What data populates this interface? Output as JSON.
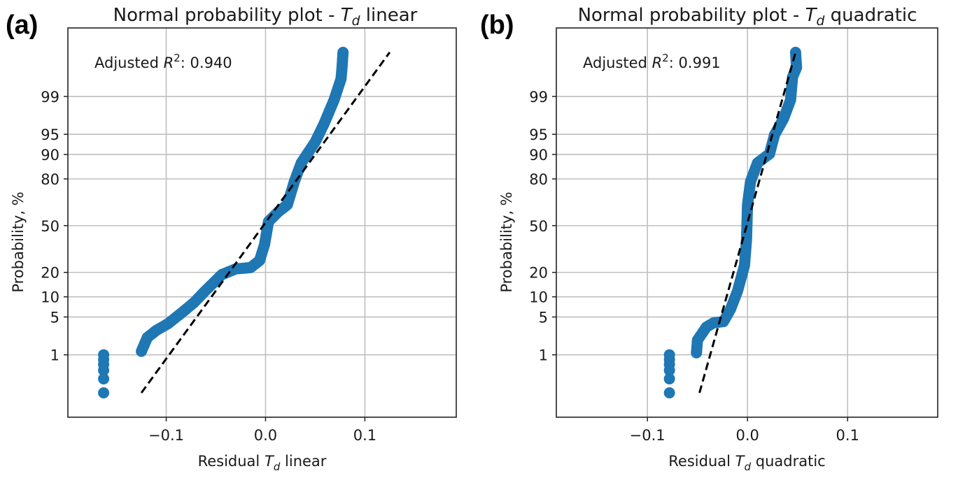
{
  "chart_data": [
    {
      "type": "scatter",
      "panel_label": "(a)",
      "title": {
        "prefix": "Normal probability plot - ",
        "var": "T",
        "sub": "d",
        "suffix": " linear"
      },
      "xlabel": {
        "prefix": "Residual ",
        "var": "T",
        "sub": "d",
        "suffix": " linear"
      },
      "ylabel": "Probability, %",
      "annotation": {
        "prefix": "Adjusted ",
        "var": "R",
        "sup": "2",
        "suffix": ": 0.940"
      },
      "xlim": [
        -0.199,
        0.192
      ],
      "ylim_probability": [
        0.019,
        99.98
      ],
      "y_scale": "normal-probability",
      "xticks": [
        -0.1,
        0.0,
        0.1
      ],
      "xtick_labels": [
        "−0.1",
        "0.0",
        "0.1"
      ],
      "yticks": [
        1,
        5,
        10,
        20,
        50,
        80,
        90,
        95,
        99
      ],
      "ytick_labels": [
        "1",
        "5",
        "10",
        "20",
        "50",
        "80",
        "90",
        "95",
        "99"
      ],
      "grid": true,
      "point_color": "#1f77b4",
      "points": [
        [
          -0.163,
          0.13
        ],
        [
          -0.163,
          0.29
        ],
        [
          -0.163,
          0.46
        ],
        [
          -0.163,
          0.62
        ],
        [
          -0.163,
          0.79
        ],
        [
          -0.163,
          1.0
        ]
      ],
      "curve": [
        [
          -0.125,
          1.18
        ],
        [
          -0.119,
          2.2
        ],
        [
          -0.11,
          2.96
        ],
        [
          -0.098,
          3.9
        ],
        [
          -0.084,
          5.9
        ],
        [
          -0.072,
          8.3
        ],
        [
          -0.061,
          11.9
        ],
        [
          -0.044,
          18.9
        ],
        [
          -0.03,
          21.8
        ],
        [
          -0.015,
          22.5
        ],
        [
          -0.006,
          26.5
        ],
        [
          -0.001,
          36.7
        ],
        [
          0.003,
          53.0
        ],
        [
          0.013,
          59.9
        ],
        [
          0.022,
          64.7
        ],
        [
          0.029,
          78.6
        ],
        [
          0.036,
          87.1
        ],
        [
          0.05,
          93.4
        ],
        [
          0.059,
          96.7
        ],
        [
          0.069,
          98.82
        ],
        [
          0.076,
          99.59
        ],
        [
          0.077,
          99.78
        ],
        [
          0.078,
          99.91
        ]
      ],
      "fit_line": {
        "style": "dashed",
        "color": "#000000",
        "from": [
          -0.125,
          0.13
        ],
        "to": [
          0.125,
          99.91
        ]
      }
    },
    {
      "type": "scatter",
      "panel_label": "(b)",
      "title": {
        "prefix": "Normal probability plot - ",
        "var": "T",
        "sub": "d",
        "suffix": " quadratic"
      },
      "xlabel": {
        "prefix": "Residual ",
        "var": "T",
        "sub": "d",
        "suffix": " quadratic"
      },
      "ylabel": "Probability, %",
      "annotation": {
        "prefix": "Adjusted ",
        "var": "R",
        "sup": "2",
        "suffix": ": 0.991"
      },
      "xlim": [
        -0.191,
        0.19
      ],
      "ylim_probability": [
        0.019,
        99.98
      ],
      "y_scale": "normal-probability",
      "xticks": [
        -0.1,
        0.0,
        0.1
      ],
      "xtick_labels": [
        "−0.1",
        "0.0",
        "0.1"
      ],
      "yticks": [
        1,
        5,
        10,
        20,
        50,
        80,
        90,
        95,
        99
      ],
      "ytick_labels": [
        "1",
        "5",
        "10",
        "20",
        "50",
        "80",
        "90",
        "95",
        "99"
      ],
      "grid": true,
      "point_color": "#1f77b4",
      "points": [
        [
          -0.078,
          0.13
        ],
        [
          -0.078,
          0.29
        ],
        [
          -0.078,
          0.46
        ],
        [
          -0.078,
          0.62
        ],
        [
          -0.078,
          0.79
        ],
        [
          -0.078,
          1.0
        ]
      ],
      "curve": [
        [
          -0.051,
          1.1
        ],
        [
          -0.05,
          1.96
        ],
        [
          -0.041,
          3.4
        ],
        [
          -0.034,
          4.0
        ],
        [
          -0.024,
          4.2
        ],
        [
          -0.017,
          6.6
        ],
        [
          -0.01,
          11.9
        ],
        [
          -0.003,
          23.7
        ],
        [
          -0.001,
          40.1
        ],
        [
          0.0,
          64.7
        ],
        [
          0.003,
          78.6
        ],
        [
          0.01,
          87.1
        ],
        [
          0.022,
          90.2
        ],
        [
          0.027,
          94.9
        ],
        [
          0.036,
          97.3
        ],
        [
          0.043,
          98.82
        ],
        [
          0.045,
          99.63
        ],
        [
          0.049,
          99.78
        ],
        [
          0.048,
          99.91
        ]
      ],
      "fit_line": {
        "style": "dashed",
        "color": "#000000",
        "from": [
          -0.048,
          0.13
        ],
        "to": [
          0.048,
          99.91
        ]
      }
    }
  ]
}
